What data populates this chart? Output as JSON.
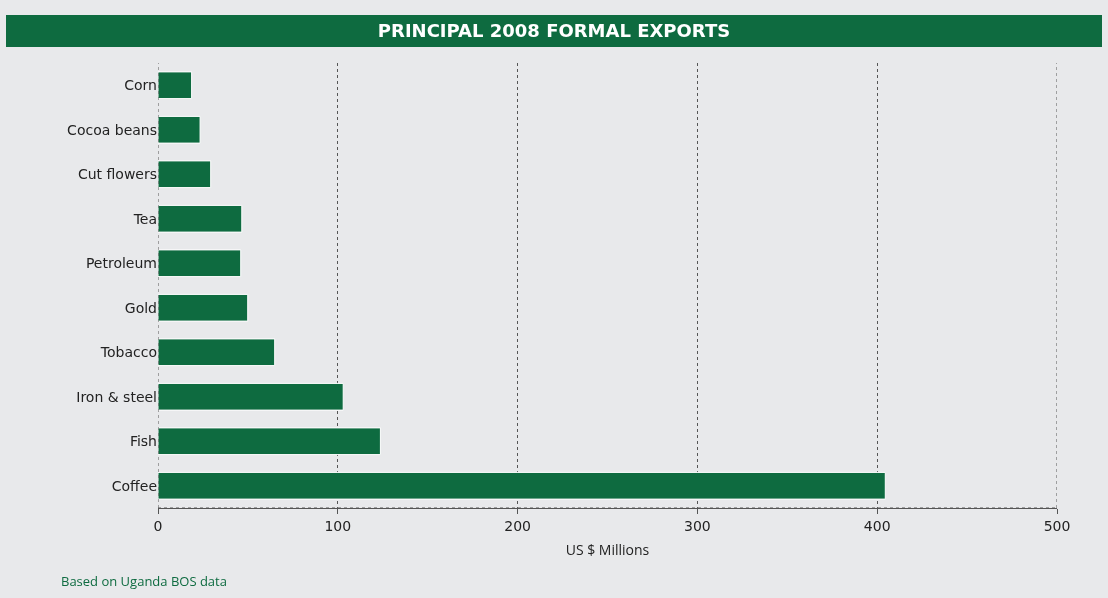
{
  "chart_data": {
    "type": "bar",
    "orientation": "horizontal",
    "title": "PRINCIPAL 2008 FORMAL EXPORTS",
    "xlabel": "US $ Millions",
    "categories": [
      "Corn",
      "Cocoa beans",
      "Cut flowers",
      "Tea",
      "Petroleum",
      "Gold",
      "Tobacco",
      "Iron & steel",
      "Fish",
      "Coffee"
    ],
    "values": [
      18.7,
      23.4,
      29.3,
      46.6,
      46,
      49.9,
      64.9,
      103,
      123.7,
      404.5
    ],
    "color": "#0e6b40",
    "xlim": [
      0,
      500
    ],
    "xticks": [
      0,
      100,
      200,
      300,
      400,
      500
    ],
    "grid": "x",
    "annotations": [
      "Based on Uganda BOS data"
    ]
  }
}
